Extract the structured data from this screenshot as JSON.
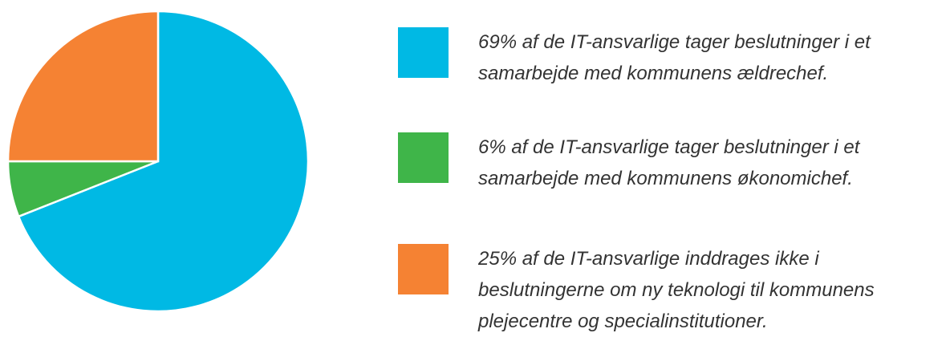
{
  "chart_data": {
    "type": "pie",
    "categories": [
      "69% af de IT-ansvarlige tager beslutninger i et samarbejde med kommunens ældrechef.",
      "6% af de IT-ansvarlige tager beslutninger i et samarbejde med kommunens økonomichef.",
      "25% af de IT-ansvarlige inddrages ikke i beslutningerne om ny teknologi til kommunens plejecentre og specialinstitutioner."
    ],
    "values": [
      69,
      6,
      25
    ],
    "colors": [
      "#00b9e4",
      "#3fb549",
      "#f58233"
    ]
  }
}
